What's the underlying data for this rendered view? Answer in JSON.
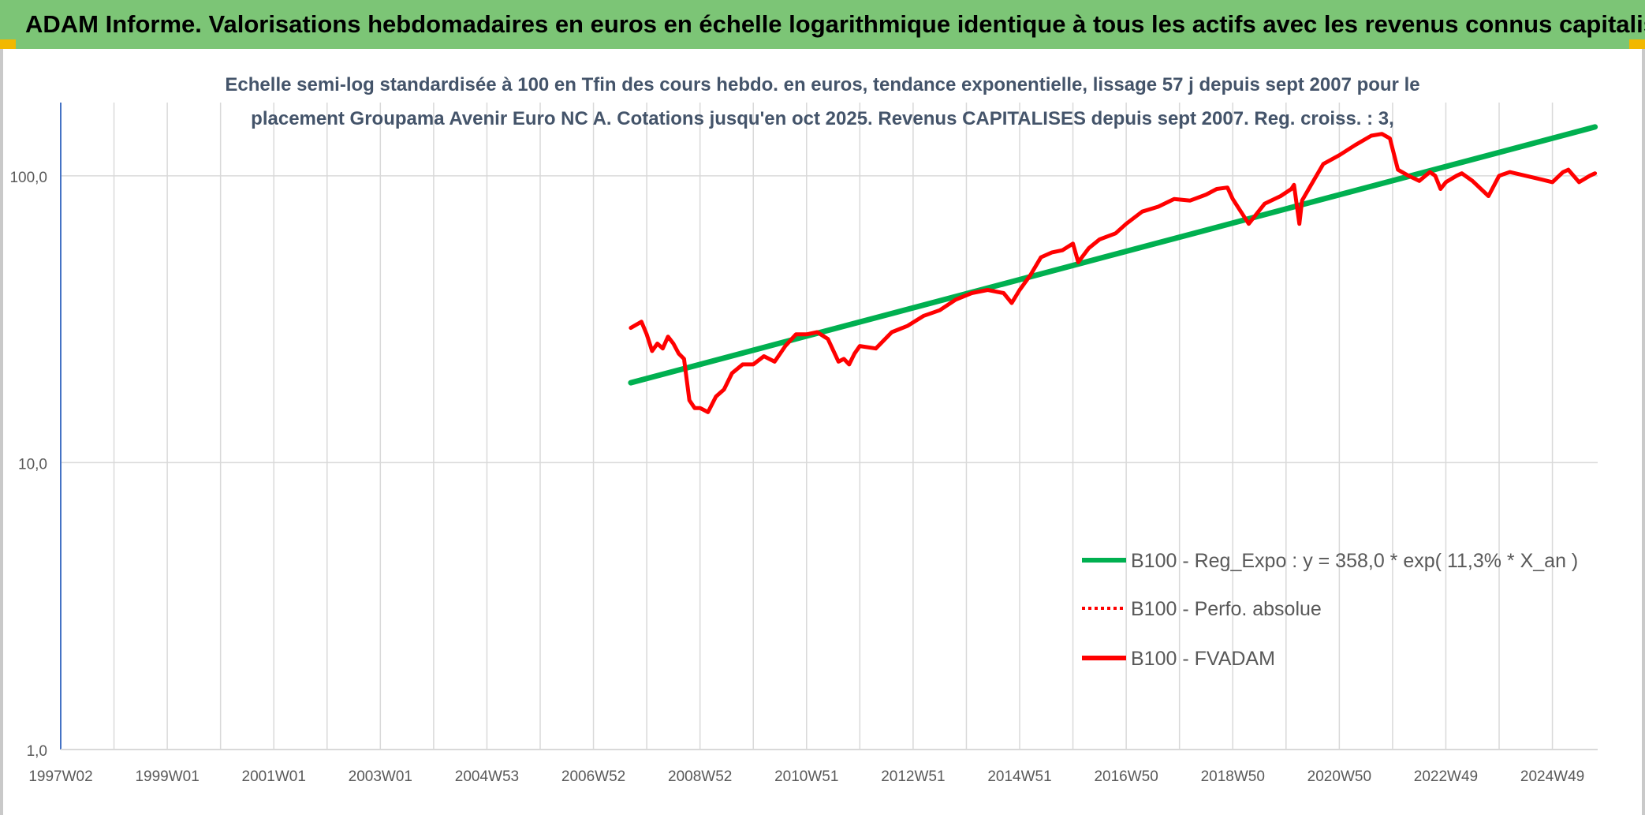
{
  "header": {
    "title": "ADAM Informe. Valorisations hebdomadaires en euros en échelle logarithmique identique à tous les actifs avec les revenus connus capitalisés"
  },
  "colors": {
    "banner": "#7cc576",
    "trend": "#00b050",
    "price": "#ff0000",
    "grid": "#d9d9d9"
  },
  "chart_data": {
    "type": "line",
    "title_lines": [
      "Echelle semi-log standardisée à 100 en Tfin des cours hebdo. en euros, tendance exponentielle, lissage 57 j depuis sept 2007 pour le",
      "placement Groupama Avenir Euro NC A. Cotations jusqu'en oct 2025. Revenus CAPITALISES depuis sept 2007. Reg. croiss. : 3,"
    ],
    "y_scale": "log",
    "ylim": [
      1,
      180
    ],
    "y_ticks": [
      {
        "value": 1,
        "label": "1,0"
      },
      {
        "value": 10,
        "label": "10,0"
      },
      {
        "value": 100,
        "label": "100,0"
      }
    ],
    "xlim": [
      1997.0,
      2025.85
    ],
    "x_ticks": [
      {
        "value": 1997.0,
        "label": "1997W02"
      },
      {
        "value": 1999.0,
        "label": "1999W01"
      },
      {
        "value": 2001.0,
        "label": "2001W01"
      },
      {
        "value": 2003.0,
        "label": "2003W01"
      },
      {
        "value": 2005.0,
        "label": "2004W53"
      },
      {
        "value": 2007.0,
        "label": "2006W52"
      },
      {
        "value": 2009.0,
        "label": "2008W52"
      },
      {
        "value": 2011.0,
        "label": "2010W51"
      },
      {
        "value": 2013.0,
        "label": "2012W51"
      },
      {
        "value": 2015.0,
        "label": "2014W51"
      },
      {
        "value": 2017.0,
        "label": "2016W50"
      },
      {
        "value": 2019.0,
        "label": "2018W50"
      },
      {
        "value": 2021.0,
        "label": "2020W50"
      },
      {
        "value": 2023.0,
        "label": "2022W49"
      },
      {
        "value": 2025.0,
        "label": "2024W49"
      }
    ],
    "grid": true,
    "legend_position": "lower-right",
    "series": [
      {
        "name": "B100 - Reg_Expo : y = 358,0 * exp( 11,3% *  X_an )",
        "color": "#00b050",
        "style": "solid",
        "x": [
          2007.7,
          2025.8
        ],
        "y": [
          19.0,
          148.0
        ]
      },
      {
        "name": "B100 - Perfo. absolue",
        "color": "#ff0000",
        "style": "dotted",
        "x": [],
        "y": []
      },
      {
        "name": "B100 - FVADAM",
        "color": "#ff0000",
        "style": "solid",
        "x": [
          2007.7,
          2007.9,
          2008.0,
          2008.1,
          2008.2,
          2008.3,
          2008.4,
          2008.5,
          2008.6,
          2008.7,
          2008.8,
          2008.9,
          2009.0,
          2009.15,
          2009.3,
          2009.45,
          2009.6,
          2009.8,
          2010.0,
          2010.2,
          2010.4,
          2010.6,
          2010.8,
          2011.0,
          2011.2,
          2011.4,
          2011.6,
          2011.7,
          2011.8,
          2011.9,
          2012.0,
          2012.3,
          2012.6,
          2012.9,
          2013.2,
          2013.5,
          2013.8,
          2014.1,
          2014.4,
          2014.7,
          2014.85,
          2015.0,
          2015.2,
          2015.4,
          2015.6,
          2015.8,
          2016.0,
          2016.1,
          2016.3,
          2016.5,
          2016.8,
          2017.0,
          2017.3,
          2017.6,
          2017.9,
          2018.2,
          2018.5,
          2018.7,
          2018.9,
          2019.0,
          2019.3,
          2019.6,
          2019.9,
          2020.1,
          2020.15,
          2020.25,
          2020.3,
          2020.5,
          2020.7,
          2021.0,
          2021.3,
          2021.6,
          2021.8,
          2021.95,
          2022.1,
          2022.3,
          2022.5,
          2022.7,
          2022.8,
          2022.9,
          2023.0,
          2023.2,
          2023.3,
          2023.5,
          2023.8,
          2024.0,
          2024.2,
          2024.5,
          2024.8,
          2025.0,
          2025.2,
          2025.3,
          2025.5,
          2025.7,
          2025.8
        ],
        "y": [
          29.5,
          31.0,
          28.0,
          24.5,
          26.0,
          25.0,
          27.5,
          26.0,
          24.0,
          23.0,
          16.5,
          15.5,
          15.5,
          15.0,
          17.0,
          18.0,
          20.5,
          22.0,
          22.0,
          23.5,
          22.5,
          25.5,
          28.0,
          28.0,
          28.5,
          27.0,
          22.5,
          23.0,
          22.0,
          24.0,
          25.5,
          25.0,
          28.5,
          30.0,
          32.5,
          34.0,
          37.0,
          39.0,
          40.0,
          39.0,
          36.0,
          40.0,
          45.0,
          52.0,
          54.0,
          55.0,
          58.0,
          50.0,
          56.0,
          60.0,
          63.0,
          68.0,
          75.0,
          78.0,
          83.0,
          82.0,
          86.0,
          90.0,
          91.0,
          83.0,
          68.0,
          80.0,
          85.0,
          90.0,
          93.0,
          68.0,
          82.0,
          95.0,
          110.0,
          118.0,
          128.0,
          138.0,
          140.0,
          135.0,
          105.0,
          100.0,
          96.0,
          103.0,
          100.0,
          90.0,
          95.0,
          100.0,
          102.0,
          96.0,
          85.0,
          100.0,
          103.0,
          100.0,
          97.0,
          95.0,
          103.0,
          105.0,
          95.0,
          100.0,
          102.0
        ]
      }
    ]
  }
}
